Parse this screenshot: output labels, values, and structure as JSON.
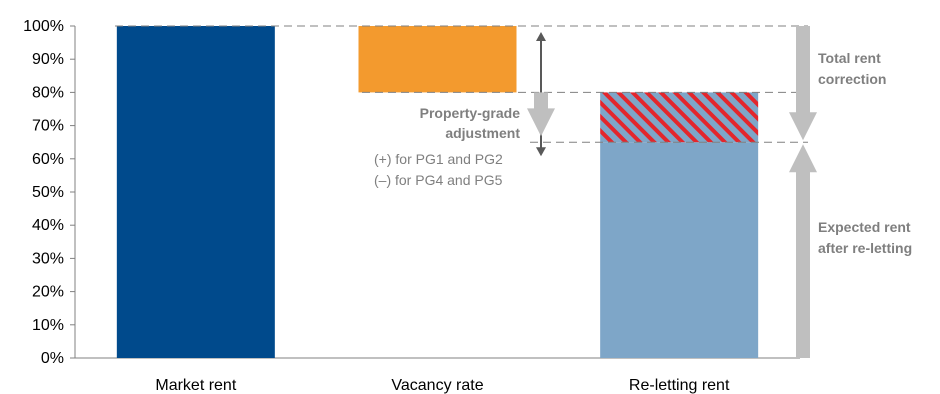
{
  "chart_data": {
    "type": "bar",
    "ylim": [
      0,
      100
    ],
    "y_ticks": [
      "0%",
      "10%",
      "20%",
      "30%",
      "40%",
      "50%",
      "60%",
      "70%",
      "80%",
      "90%",
      "100%"
    ],
    "categories": [
      "Market rent",
      "Vacancy rate",
      "Re-letting rent"
    ],
    "bars": [
      {
        "category": "Market rent",
        "segments": [
          {
            "from": 0,
            "to": 100,
            "color": "#004a8c"
          }
        ]
      },
      {
        "category": "Vacancy rate",
        "segments": [
          {
            "from": 80,
            "to": 100,
            "color": "#f39a2e"
          }
        ]
      },
      {
        "category": "Re-letting rent",
        "segments": [
          {
            "from": 0,
            "to": 65,
            "color": "#7ea6c8"
          },
          {
            "from": 65,
            "to": 80,
            "color": "#7ea6c8",
            "pattern": "red-diagonal-stripes"
          }
        ]
      }
    ],
    "reference_lines": [
      100,
      80,
      65
    ],
    "annotations": {
      "property_grade": {
        "title_lines": [
          "Property-grade",
          "adjustment"
        ],
        "detail_lines": [
          "(+) for PG1 and PG2",
          "(–) for PG4 and PG5"
        ]
      },
      "total_rent_correction": [
        "Total rent",
        "correction"
      ],
      "expected_rent": [
        "Expected rent",
        "after re-letting"
      ]
    },
    "colors": {
      "market": "#004a8c",
      "vacancy": "#f39a2e",
      "reletting": "#7ea6c8",
      "stripe": "#e3262c",
      "arrow_gray": "#bfbfbf",
      "dark_arrow": "#595959",
      "annotation_text": "#7f7f7f"
    }
  }
}
